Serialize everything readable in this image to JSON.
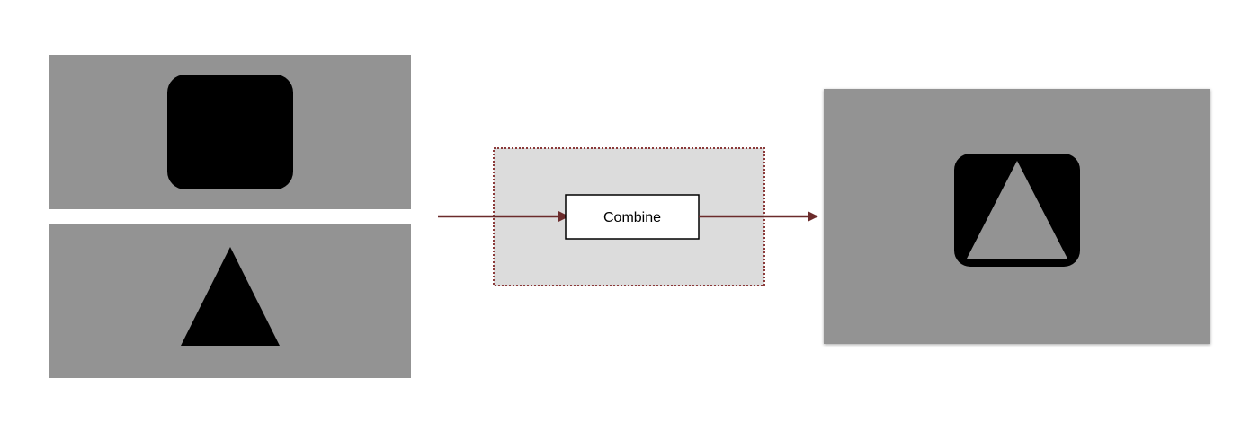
{
  "diagram": {
    "operation_label": "Combine",
    "inputs": [
      {
        "name": "input-square-panel",
        "shape": "rounded-square"
      },
      {
        "name": "input-triangle-panel",
        "shape": "triangle"
      }
    ],
    "output": {
      "shape": "rounded-square-with-triangle-cutout"
    },
    "colors": {
      "panel_gray": "#939393",
      "shape_black": "#000000",
      "process_box_fill": "#dcdcdc",
      "process_box_border": "#8b3a3a",
      "arrow": "#6b2b2b",
      "combine_box_fill": "#ffffff"
    }
  }
}
